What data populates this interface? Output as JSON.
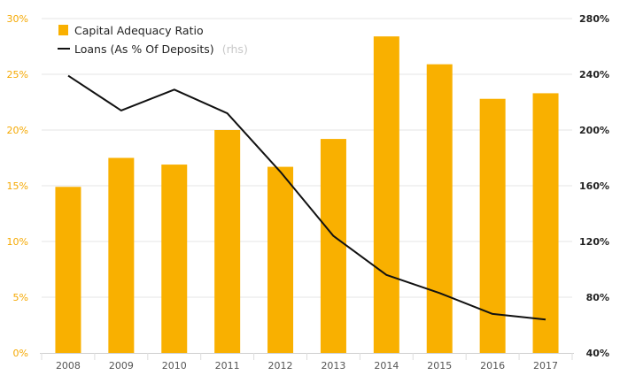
{
  "chart_data": {
    "type": "bar",
    "categories": [
      "2008",
      "2009",
      "2010",
      "2011",
      "2012",
      "2013",
      "2014",
      "2015",
      "2016",
      "2017"
    ],
    "series": [
      {
        "name": "Capital Adequacy Ratio",
        "type": "bar",
        "axis": "left",
        "color": "#f9b000",
        "values": [
          14.9,
          17.5,
          16.9,
          20.0,
          16.7,
          19.2,
          28.4,
          25.9,
          22.8,
          23.3
        ]
      },
      {
        "name": "Loans (As % Of Deposits)",
        "name_suffix": "(rhs)",
        "type": "line",
        "axis": "right",
        "color": "#111111",
        "values": [
          239,
          214,
          229,
          212,
          170,
          124,
          96,
          83,
          68,
          64
        ]
      }
    ],
    "left_axis": {
      "ylim": [
        0,
        30
      ],
      "ticks": [
        0,
        5,
        10,
        15,
        20,
        25,
        30
      ],
      "tick_labels": [
        "0%",
        "5%",
        "10%",
        "15%",
        "20%",
        "25%",
        "30%"
      ],
      "color": "#f5a800"
    },
    "right_axis": {
      "ylim": [
        40,
        280
      ],
      "ticks": [
        40,
        80,
        120,
        160,
        200,
        240,
        280
      ],
      "tick_labels": [
        "40%",
        "80%",
        "120%",
        "160%",
        "200%",
        "240%",
        "280%"
      ],
      "color": "#222222"
    },
    "grid": true,
    "legend": "top-left",
    "title": "",
    "xlabel": "",
    "ylabel": ""
  }
}
